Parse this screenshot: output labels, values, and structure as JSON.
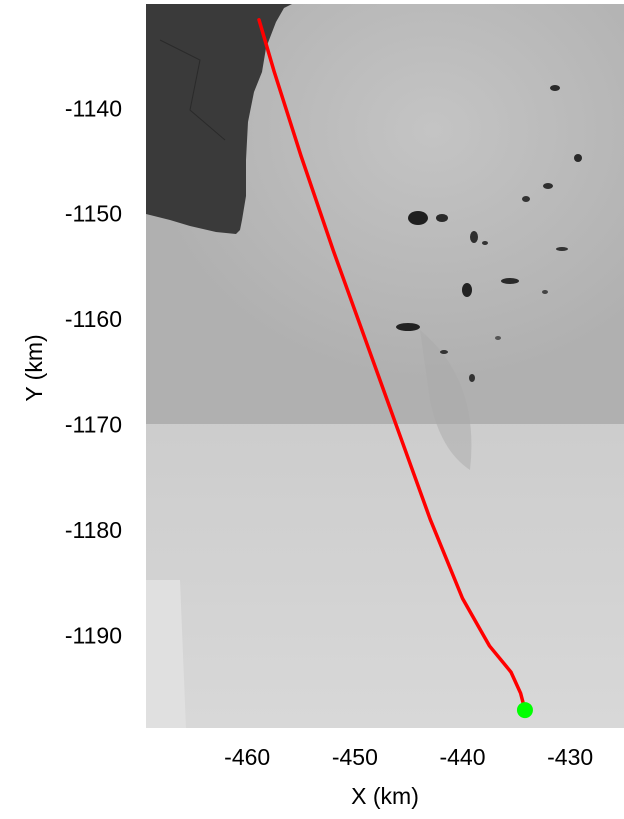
{
  "chart_data": {
    "type": "line",
    "title": "",
    "xlabel": "X (km)",
    "ylabel": "Y (km)",
    "xlim": [
      -469.4,
      -425.0
    ],
    "ylim": [
      -1198.8,
      -1130.1
    ],
    "xticks": [
      -460,
      -450,
      -440,
      -430
    ],
    "yticks": [
      -1140,
      -1150,
      -1160,
      -1170,
      -1180,
      -1190
    ],
    "background": "grayscale satellite image of ice shelf with dark open-water region at top-left",
    "grid": false,
    "legend": false,
    "series": [
      {
        "color": "#ff0000",
        "x": [
          -458.9,
          -457.5,
          -455.0,
          -452.0,
          -449.0,
          -446.0,
          -443.0,
          -440.0,
          -437.5,
          -435.5,
          -434.6,
          -434.2
        ],
        "y": [
          -1131.6,
          -1136.5,
          -1144.5,
          -1153.5,
          -1162.0,
          -1170.5,
          -1179.0,
          -1186.5,
          -1191.0,
          -1193.5,
          -1195.5,
          -1197.1
        ]
      }
    ],
    "markers": [
      {
        "color": "#00ff00",
        "x": -434.2,
        "y": -1197.1
      }
    ]
  }
}
